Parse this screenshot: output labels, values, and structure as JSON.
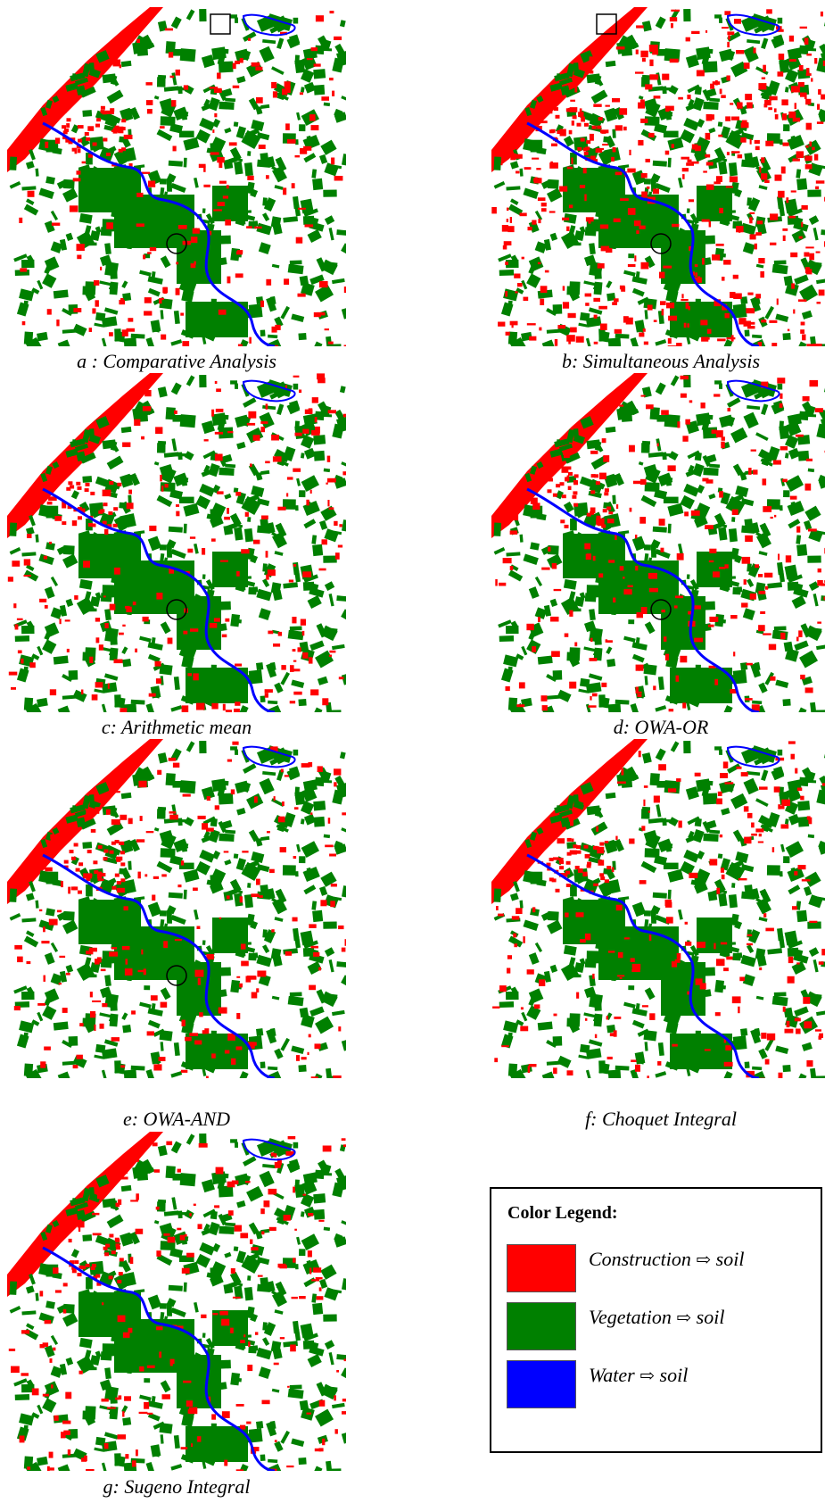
{
  "panels": [
    {
      "key": "a",
      "caption": "a : Comparative Analysis",
      "red_density": 0.7,
      "show_square": true,
      "show_circle": true
    },
    {
      "key": "b",
      "caption": "b: Simultaneous Analysis",
      "red_density": 1.6,
      "show_square": true,
      "show_circle": true
    },
    {
      "key": "c",
      "caption": "c: Arithmetic mean",
      "red_density": 0.8,
      "show_square": false,
      "show_circle": true
    },
    {
      "key": "d",
      "caption": "d: OWA-OR",
      "red_density": 0.8,
      "show_square": false,
      "show_circle": true
    },
    {
      "key": "e",
      "caption": "e: OWA-AND",
      "red_density": 0.75,
      "show_square": false,
      "show_circle": true
    },
    {
      "key": "f",
      "caption": "f: Choquet Integral",
      "red_density": 0.8,
      "show_square": false,
      "show_circle": false
    },
    {
      "key": "g",
      "caption": "g: Sugeno Integral",
      "red_density": 0.8,
      "show_square": false,
      "show_circle": false
    }
  ],
  "legend": {
    "title": "Color Legend:",
    "arrow": "⇨",
    "items": [
      {
        "name": "Construction",
        "target": "soil",
        "color": "#ff0000"
      },
      {
        "name": "Vegetation",
        "target": "soil",
        "color": "#008000"
      },
      {
        "name": "Water",
        "target": "soil",
        "color": "#0000ff"
      }
    ]
  },
  "colors": {
    "construction": "#ff0000",
    "vegetation": "#008000",
    "water": "#0000ff",
    "background": "#ffffff"
  }
}
